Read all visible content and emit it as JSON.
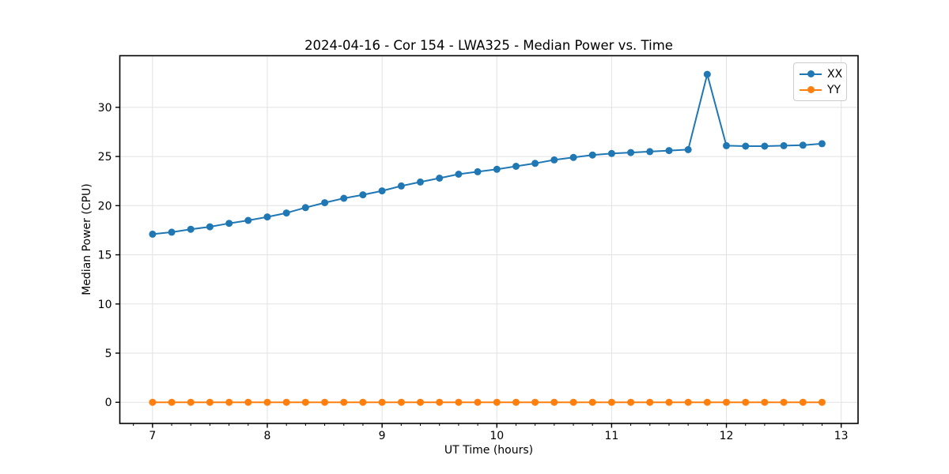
{
  "chart_data": {
    "type": "line",
    "title": "2024-04-16 - Cor 154 - LWA325 - Median Power vs. Time",
    "xlabel": "UT Time (hours)",
    "ylabel": "Median Power (CPU)",
    "x": [
      7.0,
      7.167,
      7.333,
      7.5,
      7.667,
      7.833,
      8.0,
      8.167,
      8.333,
      8.5,
      8.667,
      8.833,
      9.0,
      9.167,
      9.333,
      9.5,
      9.667,
      9.833,
      10.0,
      10.167,
      10.333,
      10.5,
      10.667,
      10.833,
      11.0,
      11.167,
      11.333,
      11.5,
      11.667,
      11.833,
      12.0,
      12.167,
      12.333,
      12.5,
      12.667,
      12.833
    ],
    "series": [
      {
        "name": "XX",
        "color": "#1f77b4",
        "values": [
          17.1,
          17.3,
          17.6,
          17.85,
          18.2,
          18.5,
          18.85,
          19.25,
          19.8,
          20.3,
          20.75,
          21.1,
          21.5,
          22.0,
          22.4,
          22.8,
          23.2,
          23.45,
          23.7,
          24.0,
          24.3,
          24.65,
          24.9,
          25.15,
          25.3,
          25.4,
          25.5,
          25.6,
          25.7,
          33.35,
          26.1,
          26.05,
          26.05,
          26.1,
          26.15,
          26.3
        ]
      },
      {
        "name": "YY",
        "color": "#ff7f0e",
        "values": [
          0.0,
          0.0,
          0.0,
          0.0,
          0.0,
          0.0,
          0.0,
          0.0,
          0.0,
          0.0,
          0.0,
          0.0,
          0.0,
          0.0,
          0.0,
          0.0,
          0.0,
          0.0,
          0.0,
          0.0,
          0.0,
          0.0,
          0.0,
          0.0,
          0.0,
          0.0,
          0.0,
          0.0,
          0.0,
          0.0,
          0.0,
          0.0,
          0.0,
          0.0,
          0.0,
          0.0
        ]
      }
    ],
    "xticks": {
      "values": [
        7,
        8,
        9,
        10,
        11,
        12,
        13
      ],
      "labels": [
        "7",
        "8",
        "9",
        "10",
        "11",
        "12",
        "13"
      ]
    },
    "yticks": {
      "values": [
        0,
        5,
        10,
        15,
        20,
        25,
        30
      ],
      "labels": [
        "0",
        "5",
        "10",
        "15",
        "20",
        "25",
        "30"
      ]
    },
    "minor_xtick_step": 0.166667,
    "xlim": [
      6.715,
      13.147
    ],
    "ylim": [
      -2.15,
      35.25
    ],
    "grid": true,
    "grid_color": "#e2e2e2",
    "spine_color": "#000000",
    "background": "#ffffff",
    "legend": {
      "position": "upper right",
      "entries": [
        "XX",
        "YY"
      ]
    }
  }
}
